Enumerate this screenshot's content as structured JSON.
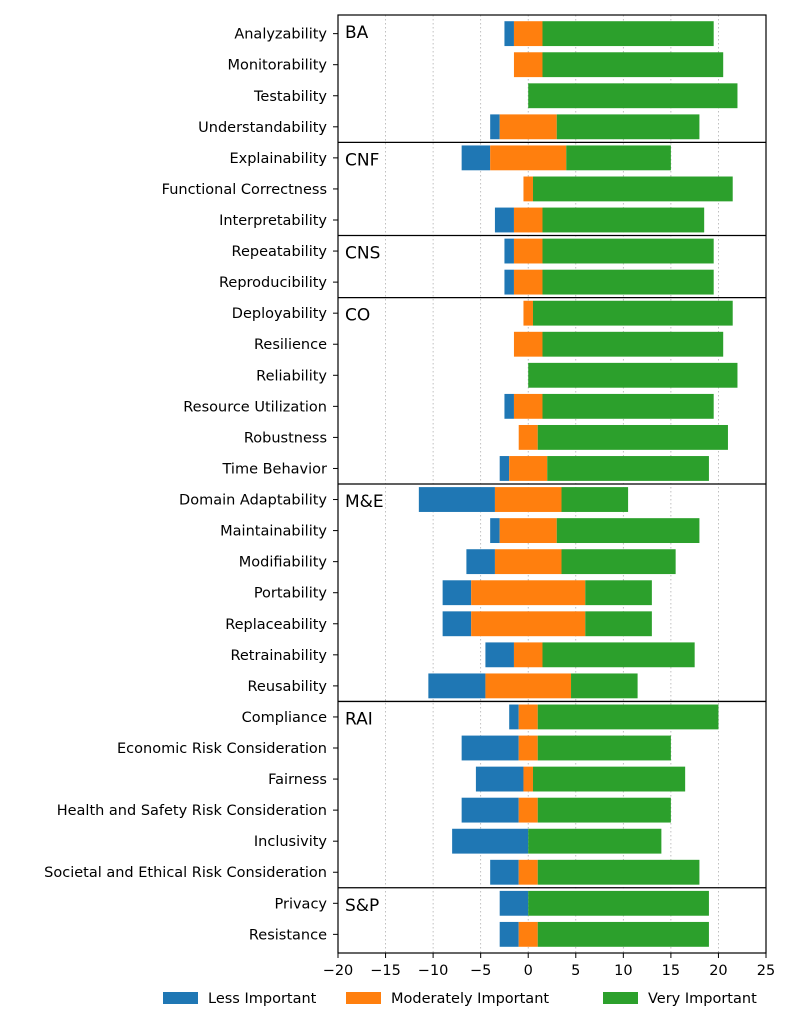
{
  "chart_data": {
    "type": "bar",
    "orientation": "horizontal-diverging-stacked",
    "title": "",
    "xlabel": "",
    "ylabel": "",
    "xlim": [
      -20,
      25
    ],
    "xticks": [
      -20,
      -15,
      -10,
      -5,
      0,
      5,
      10,
      15,
      20,
      25
    ],
    "xtick_labels": [
      "−20",
      "−15",
      "−10",
      "−5",
      "0",
      "5",
      "10",
      "15",
      "20",
      "25"
    ],
    "grid": "vertical dotted",
    "legend_position": "bottom",
    "series": [
      {
        "name": "Less Important",
        "color": "#1f77b4"
      },
      {
        "name": "Moderately Important",
        "color": "#ff7f0e"
      },
      {
        "name": "Very Important",
        "color": "#2ca02c"
      }
    ],
    "groups": [
      {
        "name": "BA",
        "items": [
          {
            "category": "Analyzability",
            "less": 1,
            "moderate": 3,
            "very": 18
          },
          {
            "category": "Monitorability",
            "less": 0,
            "moderate": 3,
            "very": 19
          },
          {
            "category": "Testability",
            "less": 0,
            "moderate": 0,
            "very": 22
          },
          {
            "category": "Understandability",
            "less": 1,
            "moderate": 6,
            "very": 15
          }
        ]
      },
      {
        "name": "CNF",
        "items": [
          {
            "category": "Explainability",
            "less": 3,
            "moderate": 8,
            "very": 11
          },
          {
            "category": "Functional Correctness",
            "less": 0,
            "moderate": 1,
            "very": 21
          },
          {
            "category": "Interpretability",
            "less": 2,
            "moderate": 3,
            "very": 17
          }
        ]
      },
      {
        "name": "CNS",
        "items": [
          {
            "category": "Repeatability",
            "less": 1,
            "moderate": 3,
            "very": 18
          },
          {
            "category": "Reproducibility",
            "less": 1,
            "moderate": 3,
            "very": 18
          }
        ]
      },
      {
        "name": "CO",
        "items": [
          {
            "category": "Deployability",
            "less": 0,
            "moderate": 1,
            "very": 21
          },
          {
            "category": "Resilience",
            "less": 0,
            "moderate": 3,
            "very": 19
          },
          {
            "category": "Reliability",
            "less": 0,
            "moderate": 0,
            "very": 22
          },
          {
            "category": "Resource Utilization",
            "less": 1,
            "moderate": 3,
            "very": 18
          },
          {
            "category": "Robustness",
            "less": 0,
            "moderate": 2,
            "very": 20
          },
          {
            "category": "Time Behavior",
            "less": 1,
            "moderate": 4,
            "very": 17
          }
        ]
      },
      {
        "name": "M&E",
        "items": [
          {
            "category": "Domain Adaptability",
            "less": 8,
            "moderate": 7,
            "very": 7
          },
          {
            "category": "Maintainability",
            "less": 1,
            "moderate": 6,
            "very": 15
          },
          {
            "category": "Modifiability",
            "less": 3,
            "moderate": 7,
            "very": 12
          },
          {
            "category": "Portability",
            "less": 3,
            "moderate": 12,
            "very": 7
          },
          {
            "category": "Replaceability",
            "less": 3,
            "moderate": 12,
            "very": 7
          },
          {
            "category": "Retrainability",
            "less": 3,
            "moderate": 3,
            "very": 16
          },
          {
            "category": "Reusability",
            "less": 6,
            "moderate": 9,
            "very": 7
          }
        ]
      },
      {
        "name": "RAI",
        "items": [
          {
            "category": "Compliance",
            "less": 1,
            "moderate": 2,
            "very": 19
          },
          {
            "category": "Economic Risk Consideration",
            "less": 6,
            "moderate": 2,
            "very": 14
          },
          {
            "category": "Fairness",
            "less": 5,
            "moderate": 1,
            "very": 16
          },
          {
            "category": "Health and Safety Risk Consideration",
            "less": 6,
            "moderate": 2,
            "very": 14
          },
          {
            "category": "Inclusivity",
            "less": 8,
            "moderate": 0,
            "very": 14
          },
          {
            "category": "Societal and Ethical Risk Consideration",
            "less": 3,
            "moderate": 2,
            "very": 17
          }
        ]
      },
      {
        "name": "S&P",
        "items": [
          {
            "category": "Privacy",
            "less": 3,
            "moderate": 0,
            "very": 19
          },
          {
            "category": "Resistance",
            "less": 2,
            "moderate": 2,
            "very": 18
          }
        ]
      }
    ]
  }
}
